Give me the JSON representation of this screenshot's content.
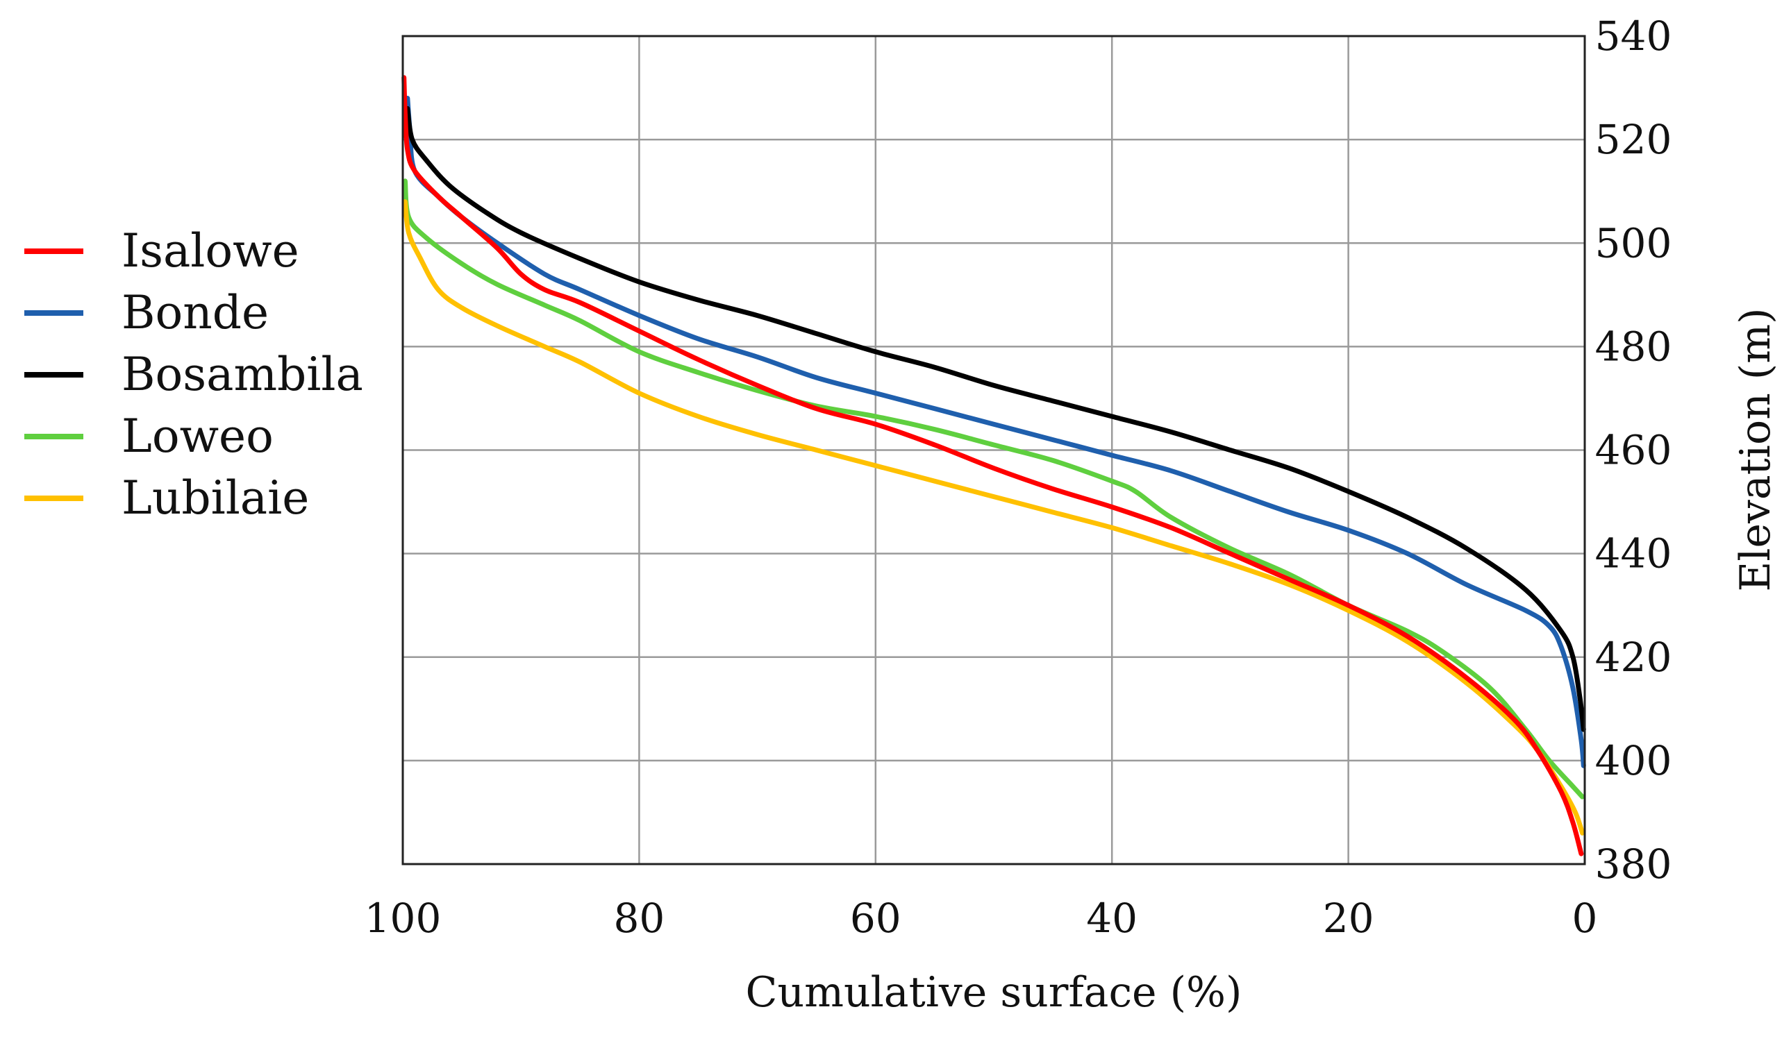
{
  "chart_data": {
    "type": "line",
    "title": "",
    "xlabel": "Cumulative surface (%)",
    "ylabel": "Elevation (m)",
    "xlim": [
      100,
      0
    ],
    "ylim": [
      380,
      540
    ],
    "x_ticks": [
      "100",
      "80",
      "60",
      "40",
      "20",
      "0"
    ],
    "y_ticks": [
      "540",
      "520",
      "500",
      "480",
      "460",
      "440",
      "420",
      "400",
      "380"
    ],
    "grid": true,
    "legend_position": "left",
    "series": [
      {
        "name": "Isalowe",
        "color": "#ff0000",
        "points": [
          [
            99.9,
            532
          ],
          [
            99.8,
            525
          ],
          [
            99.6,
            518
          ],
          [
            99,
            514
          ],
          [
            97,
            509
          ],
          [
            95,
            505
          ],
          [
            92,
            499
          ],
          [
            90,
            494
          ],
          [
            88,
            491
          ],
          [
            85,
            488.5
          ],
          [
            80,
            483
          ],
          [
            75,
            477.5
          ],
          [
            70,
            472.5
          ],
          [
            65,
            468
          ],
          [
            60,
            465
          ],
          [
            55,
            461
          ],
          [
            50,
            456.5
          ],
          [
            45,
            452.5
          ],
          [
            40,
            449
          ],
          [
            35,
            445
          ],
          [
            30,
            440
          ],
          [
            25,
            435
          ],
          [
            20,
            430
          ],
          [
            15,
            424
          ],
          [
            10,
            416
          ],
          [
            6,
            408
          ],
          [
            4,
            402
          ],
          [
            2,
            394
          ],
          [
            1,
            388
          ],
          [
            0.3,
            382
          ]
        ]
      },
      {
        "name": "Bonde",
        "color": "#1f5fad",
        "points": [
          [
            99.6,
            528
          ],
          [
            99.4,
            522
          ],
          [
            99,
            514
          ],
          [
            97,
            509
          ],
          [
            95,
            505
          ],
          [
            92,
            500
          ],
          [
            88,
            494
          ],
          [
            85,
            491
          ],
          [
            80,
            486
          ],
          [
            75,
            481.5
          ],
          [
            70,
            478
          ],
          [
            65,
            474
          ],
          [
            60,
            471
          ],
          [
            55,
            468
          ],
          [
            50,
            465
          ],
          [
            45,
            462
          ],
          [
            40,
            459
          ],
          [
            35,
            456
          ],
          [
            30,
            452
          ],
          [
            25,
            448
          ],
          [
            20,
            444.5
          ],
          [
            15,
            440
          ],
          [
            10,
            434
          ],
          [
            5,
            429
          ],
          [
            3,
            426
          ],
          [
            2,
            422
          ],
          [
            1,
            414
          ],
          [
            0.3,
            404
          ],
          [
            0.1,
            399
          ]
        ]
      },
      {
        "name": "Bosambila",
        "color": "#000000",
        "points": [
          [
            99.6,
            526
          ],
          [
            99.2,
            520
          ],
          [
            98,
            516
          ],
          [
            96,
            511
          ],
          [
            93,
            506
          ],
          [
            90,
            502
          ],
          [
            85,
            497
          ],
          [
            80,
            492.5
          ],
          [
            75,
            489
          ],
          [
            70,
            486
          ],
          [
            65,
            482.5
          ],
          [
            60,
            479
          ],
          [
            55,
            476
          ],
          [
            50,
            472.5
          ],
          [
            45,
            469.5
          ],
          [
            40,
            466.5
          ],
          [
            35,
            463.5
          ],
          [
            30,
            460
          ],
          [
            25,
            456.5
          ],
          [
            20,
            452
          ],
          [
            15,
            447
          ],
          [
            10,
            441
          ],
          [
            5,
            433
          ],
          [
            2,
            425
          ],
          [
            1,
            420
          ],
          [
            0.4,
            412
          ],
          [
            0.1,
            406
          ]
        ]
      },
      {
        "name": "Loweo",
        "color": "#5fcf3f",
        "points": [
          [
            99.8,
            512
          ],
          [
            99.5,
            505
          ],
          [
            98,
            501
          ],
          [
            95,
            496
          ],
          [
            92,
            492
          ],
          [
            88,
            488
          ],
          [
            85,
            485
          ],
          [
            80,
            479
          ],
          [
            75,
            475
          ],
          [
            70,
            471.5
          ],
          [
            65,
            468.5
          ],
          [
            60,
            466.5
          ],
          [
            55,
            464
          ],
          [
            50,
            461
          ],
          [
            45,
            458
          ],
          [
            40,
            454
          ],
          [
            38,
            452
          ],
          [
            35,
            447
          ],
          [
            30,
            441
          ],
          [
            25,
            436
          ],
          [
            20,
            430
          ],
          [
            15,
            425
          ],
          [
            12,
            421
          ],
          [
            8,
            414
          ],
          [
            5,
            406
          ],
          [
            3,
            400
          ],
          [
            1,
            395
          ],
          [
            0.2,
            393
          ]
        ]
      },
      {
        "name": "Lubilaie",
        "color": "#ffc000",
        "points": [
          [
            99.8,
            508
          ],
          [
            99.5,
            502
          ],
          [
            98.5,
            497
          ],
          [
            97,
            491
          ],
          [
            95,
            487.5
          ],
          [
            92,
            484
          ],
          [
            88,
            480
          ],
          [
            85,
            477
          ],
          [
            80,
            471
          ],
          [
            75,
            466.5
          ],
          [
            70,
            463
          ],
          [
            65,
            460
          ],
          [
            60,
            457
          ],
          [
            55,
            454
          ],
          [
            50,
            451
          ],
          [
            45,
            448
          ],
          [
            40,
            445
          ],
          [
            35,
            441.5
          ],
          [
            30,
            438
          ],
          [
            25,
            434
          ],
          [
            20,
            429
          ],
          [
            15,
            423
          ],
          [
            10,
            415
          ],
          [
            6,
            407
          ],
          [
            4,
            402
          ],
          [
            2,
            395
          ],
          [
            0.8,
            390
          ],
          [
            0.2,
            386
          ]
        ]
      }
    ]
  }
}
